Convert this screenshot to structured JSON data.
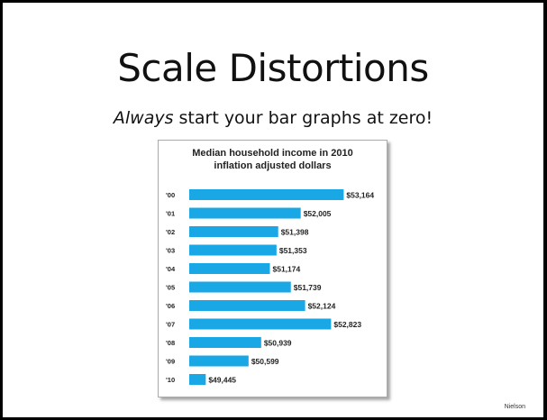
{
  "slide": {
    "title": "Scale Distortions",
    "subtitle_em": "Always",
    "subtitle_rest": " start your bar graphs at zero!",
    "footer": "Nielson"
  },
  "chart_data": {
    "type": "bar",
    "orientation": "horizontal",
    "title": "Median household income in 2010",
    "subtitle": "inflation adjusted dollars",
    "categories": [
      "'00",
      "'01",
      "'02",
      "'03",
      "'04",
      "'05",
      "'06",
      "'07",
      "'08",
      "'09",
      "'10"
    ],
    "values": [
      53164,
      52005,
      51398,
      51353,
      51174,
      51739,
      52124,
      52823,
      50939,
      50599,
      49445
    ],
    "data_labels": [
      "$53,164",
      "$52,005",
      "$51,398",
      "$51,353",
      "$51,174",
      "$51,739",
      "$52,124",
      "$52,823",
      "$50,939",
      "$50,599",
      "$49,445"
    ],
    "xlim": [
      49000,
      53300
    ],
    "bar_color": "#1aa7e6",
    "grid": false,
    "legend": "none"
  }
}
